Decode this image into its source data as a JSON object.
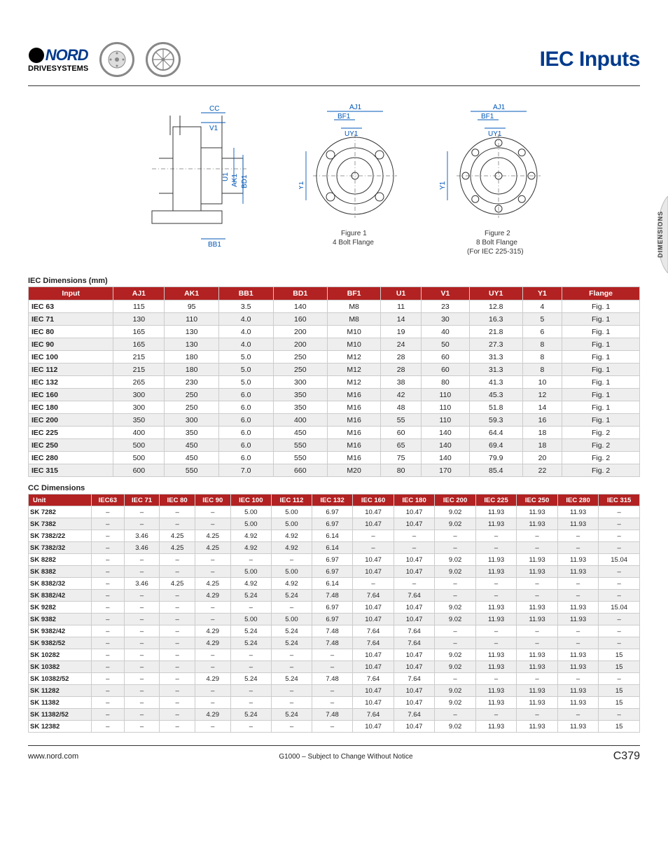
{
  "header": {
    "brand_top": "NORD",
    "brand_bottom": "DRIVESYSTEMS",
    "title": "IEC Inputs",
    "title_color": "#003a8c"
  },
  "side_tab": "DIMENSIONS",
  "diagram_labels": {
    "cc": "CC",
    "v1": "V1",
    "u1": "U1",
    "ak1": "AK1",
    "bd1": "BD1",
    "bb1": "BB1",
    "aj1": "AJ1",
    "bf1": "BF1",
    "uy1": "UY1",
    "y1": "Y1",
    "fig1a": "Figure 1",
    "fig1b": "4 Bolt Flange",
    "fig2a": "Figure 2",
    "fig2b": "8 Bolt Flange",
    "fig2c": "(For IEC 225-315)"
  },
  "iec_table": {
    "caption": "IEC Dimensions (mm)",
    "columns": [
      "Input",
      "AJ1",
      "AK1",
      "BB1",
      "BD1",
      "BF1",
      "U1",
      "V1",
      "UY1",
      "Y1",
      "Flange"
    ],
    "rows": [
      [
        "IEC 63",
        "115",
        "95",
        "3.5",
        "140",
        "M8",
        "11",
        "23",
        "12.8",
        "4",
        "Fig. 1"
      ],
      [
        "IEC 71",
        "130",
        "110",
        "4.0",
        "160",
        "M8",
        "14",
        "30",
        "16.3",
        "5",
        "Fig. 1"
      ],
      [
        "IEC 80",
        "165",
        "130",
        "4.0",
        "200",
        "M10",
        "19",
        "40",
        "21.8",
        "6",
        "Fig. 1"
      ],
      [
        "IEC 90",
        "165",
        "130",
        "4.0",
        "200",
        "M10",
        "24",
        "50",
        "27.3",
        "8",
        "Fig. 1"
      ],
      [
        "IEC 100",
        "215",
        "180",
        "5.0",
        "250",
        "M12",
        "28",
        "60",
        "31.3",
        "8",
        "Fig. 1"
      ],
      [
        "IEC 112",
        "215",
        "180",
        "5.0",
        "250",
        "M12",
        "28",
        "60",
        "31.3",
        "8",
        "Fig. 1"
      ],
      [
        "IEC 132",
        "265",
        "230",
        "5.0",
        "300",
        "M12",
        "38",
        "80",
        "41.3",
        "10",
        "Fig. 1"
      ],
      [
        "IEC 160",
        "300",
        "250",
        "6.0",
        "350",
        "M16",
        "42",
        "110",
        "45.3",
        "12",
        "Fig. 1"
      ],
      [
        "IEC 180",
        "300",
        "250",
        "6.0",
        "350",
        "M16",
        "48",
        "110",
        "51.8",
        "14",
        "Fig. 1"
      ],
      [
        "IEC 200",
        "350",
        "300",
        "6.0",
        "400",
        "M16",
        "55",
        "110",
        "59.3",
        "16",
        "Fig. 1"
      ],
      [
        "IEC 225",
        "400",
        "350",
        "6.0",
        "450",
        "M16",
        "60",
        "140",
        "64.4",
        "18",
        "Fig. 2"
      ],
      [
        "IEC 250",
        "500",
        "450",
        "6.0",
        "550",
        "M16",
        "65",
        "140",
        "69.4",
        "18",
        "Fig. 2"
      ],
      [
        "IEC 280",
        "500",
        "450",
        "6.0",
        "550",
        "M16",
        "75",
        "140",
        "79.9",
        "20",
        "Fig. 2"
      ],
      [
        "IEC 315",
        "600",
        "550",
        "7.0",
        "660",
        "M20",
        "80",
        "170",
        "85.4",
        "22",
        "Fig. 2"
      ]
    ]
  },
  "cc_table": {
    "caption": "CC Dimensions",
    "columns": [
      "Unit",
      "IEC63",
      "IEC 71",
      "IEC 80",
      "IEC 90",
      "IEC 100",
      "IEC 112",
      "IEC 132",
      "IEC 160",
      "IEC 180",
      "IEC 200",
      "IEC 225",
      "IEC 250",
      "IEC 280",
      "IEC 315"
    ],
    "rows": [
      [
        "SK 7282",
        "–",
        "–",
        "–",
        "–",
        "5.00",
        "5.00",
        "6.97",
        "10.47",
        "10.47",
        "9.02",
        "11.93",
        "11.93",
        "11.93",
        "–"
      ],
      [
        "SK 7382",
        "–",
        "–",
        "–",
        "–",
        "5.00",
        "5.00",
        "6.97",
        "10.47",
        "10.47",
        "9.02",
        "11.93",
        "11.93",
        "11.93",
        "–"
      ],
      [
        "SK 7382/22",
        "–",
        "3.46",
        "4.25",
        "4.25",
        "4.92",
        "4.92",
        "6.14",
        "–",
        "–",
        "–",
        "–",
        "–",
        "–",
        "–"
      ],
      [
        "SK 7382/32",
        "–",
        "3.46",
        "4.25",
        "4.25",
        "4.92",
        "4.92",
        "6.14",
        "–",
        "–",
        "–",
        "–",
        "–",
        "–",
        "–"
      ],
      [
        "SK 8282",
        "–",
        "–",
        "–",
        "–",
        "–",
        "–",
        "6.97",
        "10.47",
        "10.47",
        "9.02",
        "11.93",
        "11.93",
        "11.93",
        "15.04"
      ],
      [
        "SK 8382",
        "–",
        "–",
        "–",
        "–",
        "5.00",
        "5.00",
        "6.97",
        "10.47",
        "10.47",
        "9.02",
        "11.93",
        "11.93",
        "11.93",
        "–"
      ],
      [
        "SK 8382/32",
        "–",
        "3.46",
        "4.25",
        "4.25",
        "4.92",
        "4.92",
        "6.14",
        "–",
        "–",
        "–",
        "–",
        "–",
        "–",
        "–"
      ],
      [
        "SK 8382/42",
        "–",
        "–",
        "–",
        "4.29",
        "5.24",
        "5.24",
        "7.48",
        "7.64",
        "7.64",
        "–",
        "–",
        "–",
        "–",
        "–"
      ],
      [
        "SK 9282",
        "–",
        "–",
        "–",
        "–",
        "–",
        "–",
        "6.97",
        "10.47",
        "10.47",
        "9.02",
        "11.93",
        "11.93",
        "11.93",
        "15.04"
      ],
      [
        "SK 9382",
        "–",
        "–",
        "–",
        "–",
        "5.00",
        "5.00",
        "6.97",
        "10.47",
        "10.47",
        "9.02",
        "11.93",
        "11.93",
        "11.93",
        "–"
      ],
      [
        "SK 9382/42",
        "–",
        "–",
        "–",
        "4.29",
        "5.24",
        "5.24",
        "7.48",
        "7.64",
        "7.64",
        "–",
        "–",
        "–",
        "–",
        "–"
      ],
      [
        "SK 9382/52",
        "–",
        "–",
        "–",
        "4.29",
        "5.24",
        "5.24",
        "7.48",
        "7.64",
        "7.64",
        "–",
        "–",
        "–",
        "–",
        "–"
      ],
      [
        "SK 10282",
        "–",
        "–",
        "–",
        "–",
        "–",
        "–",
        "–",
        "10.47",
        "10.47",
        "9.02",
        "11.93",
        "11.93",
        "11.93",
        "15"
      ],
      [
        "SK 10382",
        "–",
        "–",
        "–",
        "–",
        "–",
        "–",
        "–",
        "10.47",
        "10.47",
        "9.02",
        "11.93",
        "11.93",
        "11.93",
        "15"
      ],
      [
        "SK 10382/52",
        "–",
        "–",
        "–",
        "4.29",
        "5.24",
        "5.24",
        "7.48",
        "7.64",
        "7.64",
        "–",
        "–",
        "–",
        "–",
        "–"
      ],
      [
        "SK 11282",
        "–",
        "–",
        "–",
        "–",
        "–",
        "–",
        "–",
        "10.47",
        "10.47",
        "9.02",
        "11.93",
        "11.93",
        "11.93",
        "15"
      ],
      [
        "SK 11382",
        "–",
        "–",
        "–",
        "–",
        "–",
        "–",
        "–",
        "10.47",
        "10.47",
        "9.02",
        "11.93",
        "11.93",
        "11.93",
        "15"
      ],
      [
        "SK 11382/52",
        "–",
        "–",
        "–",
        "4.29",
        "5.24",
        "5.24",
        "7.48",
        "7.64",
        "7.64",
        "–",
        "–",
        "–",
        "–",
        "–"
      ],
      [
        "SK 12382",
        "–",
        "–",
        "–",
        "–",
        "–",
        "–",
        "–",
        "10.47",
        "10.47",
        "9.02",
        "11.93",
        "11.93",
        "11.93",
        "15"
      ]
    ]
  },
  "footer": {
    "url": "www.nord.com",
    "center": "G1000 – Subject to Change Without Notice",
    "page": "C379"
  },
  "colors": {
    "header_red": "#b22222",
    "shade_grey": "#eeeeee",
    "dim_blue": "#0057b7"
  }
}
